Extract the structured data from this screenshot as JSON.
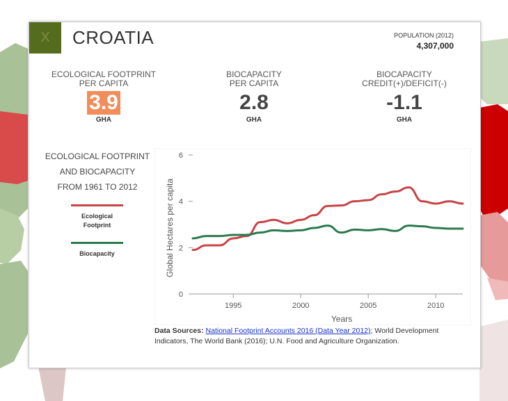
{
  "header": {
    "close_label": "X",
    "country": "CROATIA",
    "population_label": "POPULATION (2012)",
    "population_value": "4,307,000"
  },
  "metrics": [
    {
      "label_line1": "ECOLOGICAL FOOTPRINT",
      "label_line2": "PER CAPITA",
      "value": "3.9",
      "unit": "GHA"
    },
    {
      "label_line1": "BIOCAPACITY",
      "label_line2": "PER CAPITA",
      "value": "2.8",
      "unit": "GHA"
    },
    {
      "label_line1": "BIOCAPACITY",
      "label_line2": "CREDIT(+)/DEFICIT(-)",
      "value": "-1.1",
      "unit": "GHA"
    }
  ],
  "legend": {
    "title_lines": [
      "ECOLOGICAL FOOTPRINT",
      "AND BIOCAPACITY",
      "FROM 1961 TO 2012"
    ],
    "footprint_line1": "Ecological",
    "footprint_line2": "Footprint",
    "biocapacity": "Biocapacity"
  },
  "colors": {
    "footprint": "#c74345",
    "biocapacity": "#2a7a4c",
    "highlight": "#f28c5b",
    "close_bg": "#556b1e"
  },
  "chart_data": {
    "type": "line",
    "title": "",
    "xlabel": "Years",
    "ylabel": "Global Hectares per capita",
    "xlim": [
      1992,
      2012
    ],
    "ylim": [
      0,
      6
    ],
    "xticks": [
      1995,
      2000,
      2005,
      2010
    ],
    "yticks": [
      0,
      2,
      4,
      6
    ],
    "x": [
      1992,
      1993,
      1994,
      1995,
      1996,
      1997,
      1998,
      1999,
      2000,
      2001,
      2002,
      2003,
      2004,
      2005,
      2006,
      2007,
      2008,
      2009,
      2010,
      2011,
      2012
    ],
    "series": [
      {
        "name": "Ecological Footprint",
        "values": [
          1.9,
          2.1,
          2.1,
          2.4,
          2.5,
          3.1,
          3.2,
          3.05,
          3.2,
          3.4,
          3.8,
          3.82,
          4.0,
          4.05,
          4.3,
          4.42,
          4.6,
          4.0,
          3.9,
          4.0,
          3.9
        ]
      },
      {
        "name": "Biocapacity",
        "values": [
          2.4,
          2.5,
          2.5,
          2.55,
          2.55,
          2.65,
          2.75,
          2.72,
          2.75,
          2.85,
          2.95,
          2.65,
          2.78,
          2.75,
          2.8,
          2.72,
          2.95,
          2.92,
          2.85,
          2.82,
          2.82
        ]
      }
    ]
  },
  "sources": {
    "lead": "Data Sources:",
    "link_text": "National Footprint Accounts 2016 (Data Year 2012)",
    "rest": "; World Development Indicators, The World Bank (2016); U.N. Food and Agriculture Organization."
  }
}
